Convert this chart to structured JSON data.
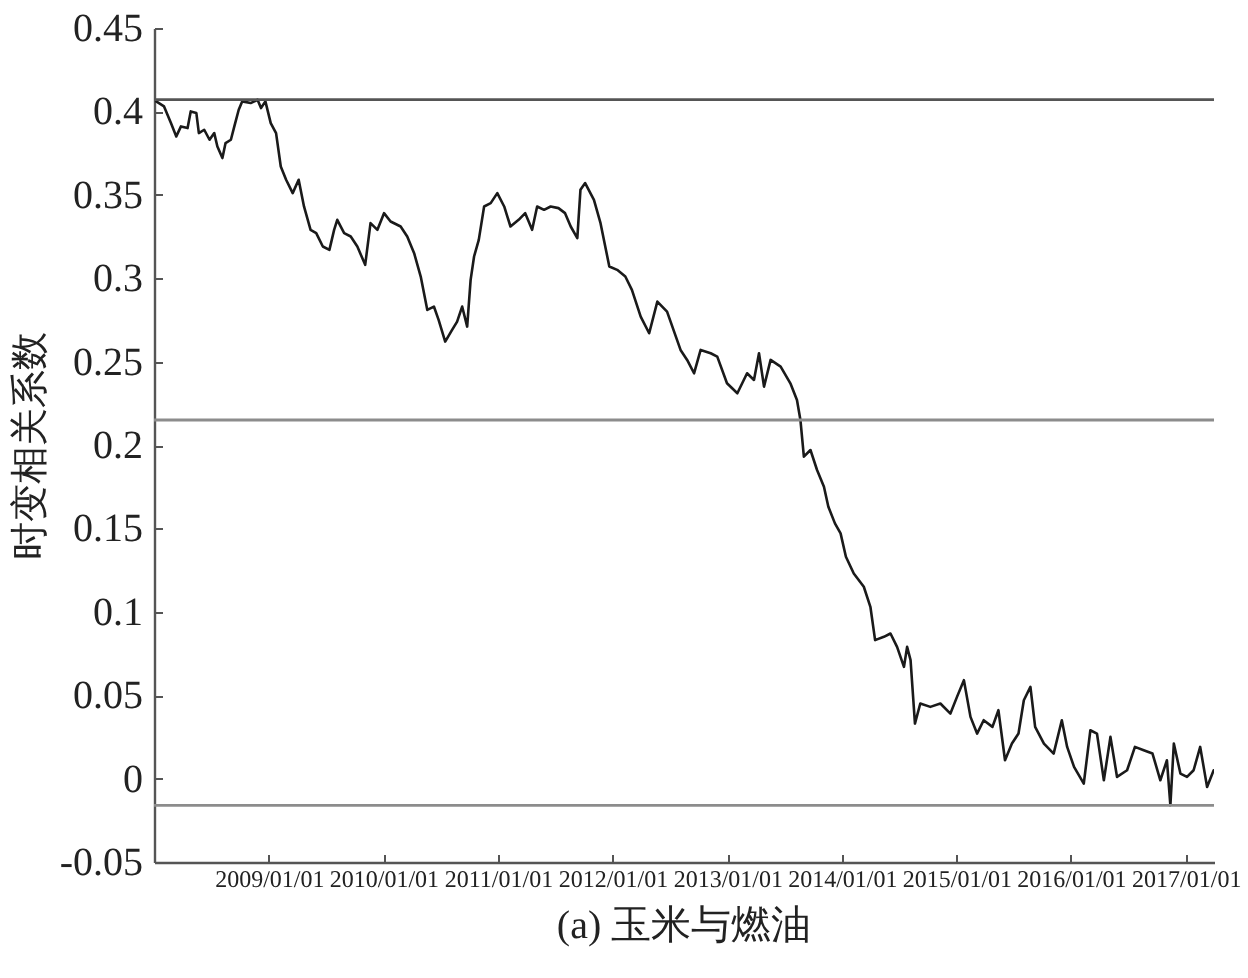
{
  "chart_data": {
    "type": "line",
    "title": "(a) 玉米与燃油",
    "ylabel": "时变相关系数",
    "x": [
      "2008-01-08",
      "2008-02-02",
      "2008-02-24",
      "2008-03-12",
      "2008-03-27",
      "2008-04-17",
      "2008-04-27",
      "2008-05-15",
      "2008-05-23",
      "2008-06-09",
      "2008-06-26",
      "2008-07-11",
      "2008-07-21",
      "2008-08-06",
      "2008-08-16",
      "2008-09-02",
      "2008-09-13",
      "2008-09-27",
      "2008-10-08",
      "2008-11-04",
      "2008-11-26",
      "2008-12-07",
      "2008-12-21",
      "2009-01-07",
      "2009-01-24",
      "2009-02-08",
      "2009-02-25",
      "2009-03-18",
      "2009-04-06",
      "2009-04-23",
      "2009-05-14",
      "2009-06-01",
      "2009-06-22",
      "2009-07-13",
      "2009-07-28",
      "2009-08-07",
      "2009-08-29",
      "2009-09-19",
      "2009-10-10",
      "2009-11-04",
      "2009-11-21",
      "2009-12-13",
      "2010-01-03",
      "2010-01-24",
      "2010-02-25",
      "2010-03-18",
      "2010-04-09",
      "2010-04-30",
      "2010-05-21",
      "2010-06-11",
      "2010-06-26",
      "2010-07-17",
      "2010-08-08",
      "2010-08-24",
      "2010-09-09",
      "2010-09-25",
      "2010-10-06",
      "2010-10-17",
      "2010-11-01",
      "2010-11-18",
      "2010-12-09",
      "2010-12-30",
      "2011-01-21",
      "2011-02-10",
      "2011-03-08",
      "2011-03-29",
      "2011-04-20",
      "2011-05-06",
      "2011-05-28",
      "2011-06-18",
      "2011-07-13",
      "2011-08-03",
      "2011-08-21",
      "2011-09-11",
      "2011-09-21",
      "2011-10-06",
      "2011-11-03",
      "2011-11-24",
      "2011-12-22",
      "2012-01-16",
      "2012-02-11",
      "2012-03-03",
      "2012-03-31",
      "2012-04-27",
      "2012-05-23",
      "2012-06-23",
      "2012-08-05",
      "2012-08-26",
      "2012-09-17",
      "2012-10-08",
      "2012-11-09",
      "2012-11-30",
      "2012-12-31",
      "2013-02-02",
      "2013-03-05",
      "2013-03-27",
      "2013-04-12",
      "2013-04-28",
      "2013-05-19",
      "2013-06-20",
      "2013-07-21",
      "2013-08-11",
      "2013-08-22",
      "2013-09-02",
      "2013-09-23",
      "2013-10-14",
      "2013-11-05",
      "2013-11-19",
      "2013-12-10",
      "2013-12-28",
      "2014-01-14",
      "2014-02-08",
      "2014-03-12",
      "2014-04-02",
      "2014-04-17",
      "2014-05-15",
      "2014-06-05",
      "2014-06-26",
      "2014-07-18",
      "2014-07-28",
      "2014-08-08",
      "2014-08-22",
      "2014-09-08",
      "2014-10-10",
      "2014-11-11",
      "2014-12-13",
      "2015-01-03",
      "2015-01-25",
      "2015-02-15",
      "2015-03-08",
      "2015-03-29",
      "2015-04-26",
      "2015-05-15",
      "2015-06-05",
      "2015-06-27",
      "2015-07-18",
      "2015-08-04",
      "2015-08-25",
      "2015-09-09",
      "2015-10-07",
      "2015-11-07",
      "2015-12-03",
      "2015-12-20",
      "2016-01-11",
      "2016-02-11",
      "2016-03-03",
      "2016-03-24",
      "2016-04-15",
      "2016-05-06",
      "2016-05-27",
      "2016-06-28",
      "2016-07-23",
      "2016-08-20",
      "2016-09-17",
      "2016-10-12",
      "2016-11-02",
      "2016-11-13",
      "2016-11-24",
      "2016-12-15",
      "2017-01-05",
      "2017-01-26",
      "2017-02-16",
      "2017-03-10",
      "2017-03-31"
    ],
    "series": [
      {
        "color": "#1a1a1a",
        "values": [
          0.406,
          0.403,
          0.393,
          0.385,
          0.391,
          0.39,
          0.4,
          0.399,
          0.387,
          0.389,
          0.383,
          0.387,
          0.379,
          0.372,
          0.381,
          0.383,
          0.391,
          0.401,
          0.406,
          0.405,
          0.407,
          0.402,
          0.406,
          0.393,
          0.387,
          0.367,
          0.359,
          0.351,
          0.359,
          0.343,
          0.329,
          0.327,
          0.319,
          0.317,
          0.329,
          0.335,
          0.327,
          0.325,
          0.319,
          0.308,
          0.333,
          0.329,
          0.339,
          0.334,
          0.331,
          0.325,
          0.315,
          0.301,
          0.281,
          0.283,
          0.275,
          0.262,
          0.269,
          0.274,
          0.283,
          0.271,
          0.299,
          0.313,
          0.323,
          0.343,
          0.345,
          0.351,
          0.343,
          0.331,
          0.335,
          0.339,
          0.329,
          0.343,
          0.341,
          0.343,
          0.342,
          0.339,
          0.331,
          0.324,
          0.353,
          0.357,
          0.347,
          0.333,
          0.307,
          0.305,
          0.301,
          0.293,
          0.277,
          0.267,
          0.286,
          0.28,
          0.257,
          0.251,
          0.243,
          0.257,
          0.255,
          0.253,
          0.237,
          0.231,
          0.243,
          0.239,
          0.255,
          0.235,
          0.251,
          0.247,
          0.237,
          0.227,
          0.215,
          0.193,
          0.197,
          0.185,
          0.175,
          0.163,
          0.153,
          0.147,
          0.133,
          0.123,
          0.115,
          0.103,
          0.083,
          0.085,
          0.087,
          0.079,
          0.067,
          0.079,
          0.071,
          0.033,
          0.045,
          0.043,
          0.045,
          0.039,
          0.049,
          0.059,
          0.037,
          0.027,
          0.035,
          0.031,
          0.041,
          0.011,
          0.021,
          0.027,
          0.047,
          0.055,
          0.031,
          0.021,
          0.015,
          0.035,
          0.019,
          0.007,
          -0.003,
          0.029,
          0.027,
          -0.001,
          0.025,
          0.001,
          0.005,
          0.019,
          0.017,
          0.015,
          -0.001,
          0.011,
          -0.016,
          0.021,
          0.003,
          0.001,
          0.005,
          0.019,
          -0.005,
          0.005
        ]
      }
    ],
    "xlim": [
      "2008-01-01",
      "2017-04-01"
    ],
    "xticks": [
      {
        "value": "2009-01-01",
        "label": "2009/01/01"
      },
      {
        "value": "2010-01-01",
        "label": "2010/01/01"
      },
      {
        "value": "2011-01-01",
        "label": "2011/01/01"
      },
      {
        "value": "2012-01-01",
        "label": "2012/01/01"
      },
      {
        "value": "2013-01-01",
        "label": "2013/01/01"
      },
      {
        "value": "2014-01-01",
        "label": "2014/01/01"
      },
      {
        "value": "2015-01-01",
        "label": "2015/01/01"
      },
      {
        "value": "2016-01-01",
        "label": "2016/01/01"
      },
      {
        "value": "2017-01-01",
        "label": "2017/01/01"
      }
    ],
    "ylim": [
      -0.05,
      0.45
    ],
    "yticks": [
      -0.05,
      0,
      0.05,
      0.1,
      0.15,
      0.2,
      0.25,
      0.3,
      0.35,
      0.4,
      0.45
    ],
    "ref_lines": [
      {
        "axis": "y",
        "value": 0.407,
        "color": "#555555"
      },
      {
        "axis": "y",
        "value": 0.215,
        "color": "#8c8c8c"
      },
      {
        "axis": "y",
        "value": -0.016,
        "color": "#8c8c8c"
      }
    ]
  }
}
